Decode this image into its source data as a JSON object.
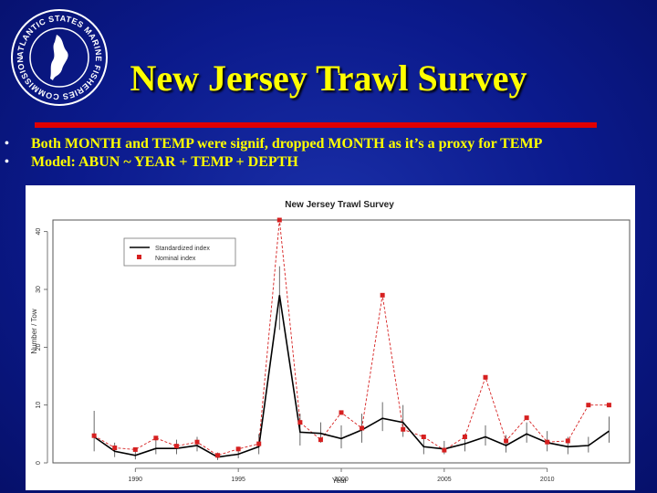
{
  "logo": {
    "text": "ATLANTIC STATES MARINE FISHERIES COMMISSION",
    "icon": "asmfc-seal-icon"
  },
  "slide": {
    "title": "New Jersey Trawl Survey",
    "bullets": [
      "Both MONTH and TEMP were signif, dropped MONTH as it’s a proxy for TEMP",
      "Model: ABUN ~ YEAR + TEMP + DEPTH"
    ],
    "bullet_glyph": "•"
  },
  "colors": {
    "background": "#0b1a8c",
    "title": "#ffff00",
    "rule": "#e00000",
    "standardized": "#000000",
    "nominal": "#d62020"
  },
  "chart_data": {
    "type": "line",
    "title": "New Jersey Trawl Survey",
    "xlabel": "Year",
    "ylabel": "Number / Tow",
    "xlim": [
      1986,
      2014
    ],
    "ylim": [
      0,
      42
    ],
    "xticks": [
      1990,
      1995,
      2000,
      2005,
      2010
    ],
    "yticks": [
      0,
      10,
      20,
      30,
      40
    ],
    "grid": false,
    "legend_position": "top-left",
    "x": [
      1988,
      1989,
      1990,
      1991,
      1992,
      1993,
      1994,
      1995,
      1996,
      1997,
      1998,
      1999,
      2000,
      2001,
      2002,
      2003,
      2004,
      2005,
      2006,
      2007,
      2008,
      2009,
      2010,
      2011,
      2012,
      2013
    ],
    "series": [
      {
        "name": "Standardized index",
        "style": "line",
        "color": "#000000",
        "values": [
          4.5,
          2.0,
          1.3,
          2.5,
          2.5,
          3.0,
          1.0,
          1.5,
          2.8,
          29.0,
          5.3,
          5.1,
          4.2,
          5.7,
          7.7,
          7.0,
          2.8,
          2.4,
          3.3,
          4.5,
          3.0,
          5.0,
          3.5,
          2.8,
          3.0,
          5.5
        ],
        "error_low": [
          2.0,
          1.0,
          0.6,
          1.5,
          1.5,
          2.0,
          0.5,
          0.8,
          1.5,
          23.0,
          3.0,
          3.5,
          2.5,
          3.5,
          5.5,
          4.5,
          1.5,
          1.5,
          2.0,
          3.0,
          1.8,
          3.5,
          2.0,
          1.5,
          1.8,
          3.5
        ],
        "error_high": [
          9.0,
          3.5,
          2.2,
          4.0,
          4.0,
          4.5,
          1.8,
          2.8,
          5.0,
          34.0,
          8.5,
          7.0,
          6.5,
          8.5,
          10.5,
          10.0,
          4.5,
          3.8,
          5.0,
          6.5,
          4.8,
          7.0,
          5.5,
          4.5,
          4.5,
          8.0
        ]
      },
      {
        "name": "Nominal index",
        "style": "dashed-line-with-square-markers",
        "color": "#d62020",
        "values": [
          4.7,
          2.6,
          2.3,
          4.3,
          2.9,
          3.6,
          1.3,
          2.4,
          3.3,
          42.0,
          7.0,
          4.0,
          8.7,
          6.0,
          29.0,
          5.8,
          4.5,
          2.2,
          4.5,
          14.8,
          3.8,
          7.8,
          3.6,
          3.8,
          10.0,
          10.0
        ]
      }
    ]
  }
}
